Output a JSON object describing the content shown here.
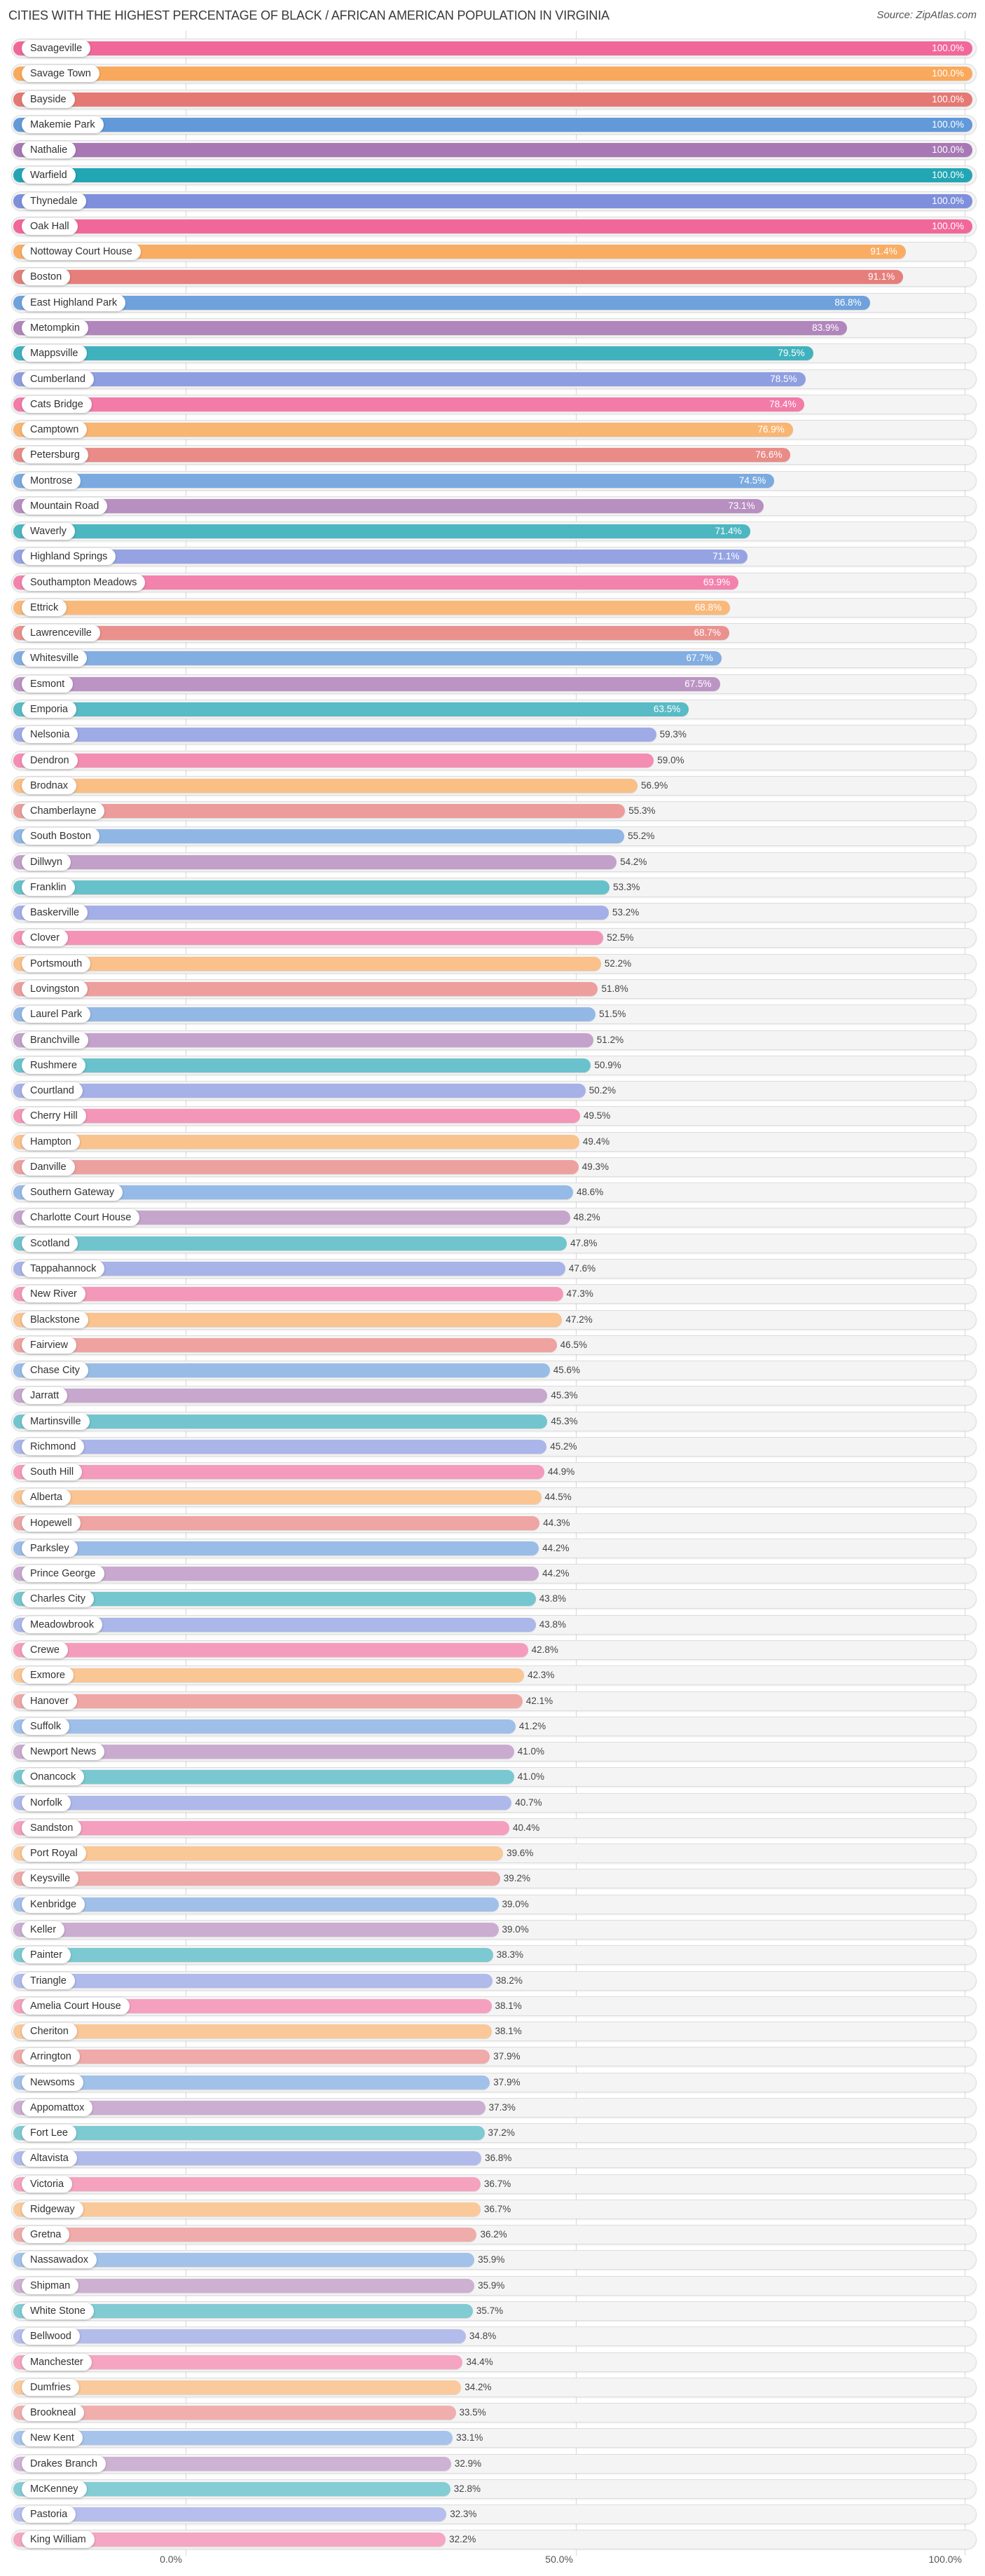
{
  "header": {
    "title": "Cities with the Highest Percentage of Black / African American Population in Virginia",
    "source": "Source: ZipAtlas.com"
  },
  "axis": {
    "ticks": [
      {
        "label": "0.0%",
        "value": 0
      },
      {
        "label": "50.0%",
        "value": 50
      },
      {
        "label": "100.0%",
        "value": 100
      }
    ]
  },
  "palette": {
    "strong": [
      "#f2679a",
      "#f9a95b",
      "#e57873",
      "#6199d9",
      "#a878b5",
      "#22a6b3",
      "#7e8fdc"
    ],
    "light": [
      "#f5a6c2",
      "#facb9e",
      "#f0afae",
      "#a7c5eb",
      "#cfb3d4",
      "#86cdd5",
      "#b5beec"
    ]
  },
  "chart_data": {
    "type": "bar",
    "orientation": "horizontal",
    "title": "Cities with the Highest Percentage of Black / African American Population in Virginia",
    "source": "Source: ZipAtlas.com",
    "xlabel": "",
    "ylabel": "",
    "xlim": [
      0,
      100
    ],
    "x_tick_labels": [
      "0.0%",
      "50.0%",
      "100.0%"
    ],
    "grid": true,
    "legend": null,
    "categories": [
      "Savageville",
      "Savage Town",
      "Bayside",
      "Makemie Park",
      "Nathalie",
      "Warfield",
      "Thynedale",
      "Oak Hall",
      "Nottoway Court House",
      "Boston",
      "East Highland Park",
      "Metompkin",
      "Mappsville",
      "Cumberland",
      "Cats Bridge",
      "Camptown",
      "Petersburg",
      "Montrose",
      "Mountain Road",
      "Waverly",
      "Highland Springs",
      "Southampton Meadows",
      "Ettrick",
      "Lawrenceville",
      "Whitesville",
      "Esmont",
      "Emporia",
      "Nelsonia",
      "Dendron",
      "Brodnax",
      "Chamberlayne",
      "South Boston",
      "Dillwyn",
      "Franklin",
      "Baskerville",
      "Clover",
      "Portsmouth",
      "Lovingston",
      "Laurel Park",
      "Branchville",
      "Rushmere",
      "Courtland",
      "Cherry Hill",
      "Hampton",
      "Danville",
      "Southern Gateway",
      "Charlotte Court House",
      "Scotland",
      "Tappahannock",
      "New River",
      "Blackstone",
      "Fairview",
      "Chase City",
      "Jarratt",
      "Martinsville",
      "Richmond",
      "South Hill",
      "Alberta",
      "Hopewell",
      "Parksley",
      "Prince George",
      "Charles City",
      "Meadowbrook",
      "Crewe",
      "Exmore",
      "Hanover",
      "Suffolk",
      "Newport News",
      "Onancock",
      "Norfolk",
      "Sandston",
      "Port Royal",
      "Keysville",
      "Kenbridge",
      "Keller",
      "Painter",
      "Triangle",
      "Amelia Court House",
      "Cheriton",
      "Arrington",
      "Newsoms",
      "Appomattox",
      "Fort Lee",
      "Altavista",
      "Victoria",
      "Ridgeway",
      "Gretna",
      "Nassawadox",
      "Shipman",
      "White Stone",
      "Bellwood",
      "Manchester",
      "Dumfries",
      "Brookneal",
      "New Kent",
      "Drakes Branch",
      "McKenney",
      "Pastoria",
      "King William"
    ],
    "values": [
      100.0,
      100.0,
      100.0,
      100.0,
      100.0,
      100.0,
      100.0,
      100.0,
      91.4,
      91.1,
      86.8,
      83.9,
      79.5,
      78.5,
      78.4,
      76.9,
      76.6,
      74.5,
      73.1,
      71.4,
      71.1,
      69.9,
      68.8,
      68.7,
      67.7,
      67.5,
      63.5,
      59.3,
      59.0,
      56.9,
      55.3,
      55.2,
      54.2,
      53.3,
      53.2,
      52.5,
      52.2,
      51.8,
      51.5,
      51.2,
      50.9,
      50.2,
      49.5,
      49.4,
      49.3,
      48.6,
      48.2,
      47.8,
      47.6,
      47.3,
      47.2,
      46.5,
      45.6,
      45.3,
      45.3,
      45.2,
      44.9,
      44.5,
      44.3,
      44.2,
      44.2,
      43.8,
      43.8,
      42.8,
      42.3,
      42.1,
      41.2,
      41.0,
      41.0,
      40.7,
      40.4,
      39.6,
      39.2,
      39.0,
      39.0,
      38.3,
      38.2,
      38.1,
      38.1,
      37.9,
      37.9,
      37.3,
      37.2,
      36.8,
      36.7,
      36.7,
      36.2,
      35.9,
      35.9,
      35.7,
      34.8,
      34.4,
      34.2,
      33.5,
      33.1,
      32.9,
      32.8,
      32.3,
      32.2
    ],
    "value_labels": [
      "100.0%",
      "100.0%",
      "100.0%",
      "100.0%",
      "100.0%",
      "100.0%",
      "100.0%",
      "100.0%",
      "91.4%",
      "91.1%",
      "86.8%",
      "83.9%",
      "79.5%",
      "78.5%",
      "78.4%",
      "76.9%",
      "76.6%",
      "74.5%",
      "73.1%",
      "71.4%",
      "71.1%",
      "69.9%",
      "68.8%",
      "68.7%",
      "67.7%",
      "67.5%",
      "63.5%",
      "59.3%",
      "59.0%",
      "56.9%",
      "55.3%",
      "55.2%",
      "54.2%",
      "53.3%",
      "53.2%",
      "52.5%",
      "52.2%",
      "51.8%",
      "51.5%",
      "51.2%",
      "50.9%",
      "50.2%",
      "49.5%",
      "49.4%",
      "49.3%",
      "48.6%",
      "48.2%",
      "47.8%",
      "47.6%",
      "47.3%",
      "47.2%",
      "46.5%",
      "45.6%",
      "45.3%",
      "45.3%",
      "45.2%",
      "44.9%",
      "44.5%",
      "44.3%",
      "44.2%",
      "44.2%",
      "43.8%",
      "43.8%",
      "42.8%",
      "42.3%",
      "42.1%",
      "41.2%",
      "41.0%",
      "41.0%",
      "40.7%",
      "40.4%",
      "39.6%",
      "39.2%",
      "39.0%",
      "39.0%",
      "38.3%",
      "38.2%",
      "38.1%",
      "38.1%",
      "37.9%",
      "37.9%",
      "37.3%",
      "37.2%",
      "36.8%",
      "36.7%",
      "36.7%",
      "36.2%",
      "35.9%",
      "35.9%",
      "35.7%",
      "34.8%",
      "34.4%",
      "34.2%",
      "33.5%",
      "33.1%",
      "32.9%",
      "32.8%",
      "32.3%",
      "32.2%"
    ]
  }
}
